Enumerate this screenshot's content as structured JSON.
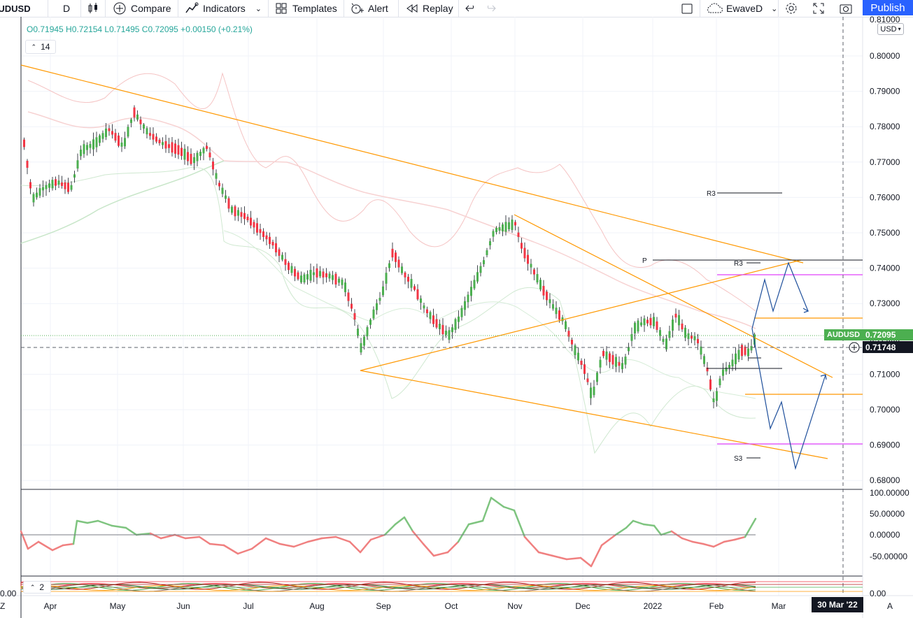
{
  "toolbar": {
    "symbol": "AUDUSD",
    "interval": "D",
    "compare": "Compare",
    "indicators": "Indicators",
    "templates": "Templates",
    "alert": "Alert",
    "replay": "Replay",
    "layout_name": "EwaveD",
    "publish": "Publish"
  },
  "legend": {
    "ohlc": "O0.71945  H0.72154  L0.71495  C0.72095  +0.00150 (+0.21%)",
    "ma_length": "14",
    "osc_length": "2"
  },
  "price_axis": {
    "currency": "USD",
    "top_partial": "0.81000",
    "ticks": [
      "0.80000",
      "0.79000",
      "0.78000",
      "0.77000",
      "0.76000",
      "0.75000",
      "0.74000",
      "0.73000",
      "0.72000",
      "0.71000",
      "0.70000",
      "0.69000",
      "0.68000"
    ],
    "symbol_label": "AUDUSD",
    "last_price": "0.72095",
    "crosshair_price": "0.71748"
  },
  "oscillator_axis": {
    "ticks": [
      "100.00000",
      "50.00000",
      "0.00000",
      "-50.00000"
    ],
    "bottom_value": "0.00"
  },
  "time_axis": {
    "labels": [
      "Apr",
      "May",
      "Jun",
      "Jul",
      "Aug",
      "Sep",
      "Oct",
      "Nov",
      "Dec",
      "2022",
      "Feb",
      "Mar"
    ],
    "crosshair_date": "30 Mar '22",
    "left_mark": "Z",
    "auto_button": "A"
  },
  "pivot_labels": {
    "r3_upper": "R3",
    "p": "P",
    "r3_lower": "R3",
    "s3": "S3"
  },
  "colors": {
    "up": "#4caf50",
    "down": "#f23645",
    "trendline": "#ff9800",
    "projection": "#1e4f9b",
    "pivot_magenta": "#e040fb",
    "accent": "#2962ff"
  }
}
